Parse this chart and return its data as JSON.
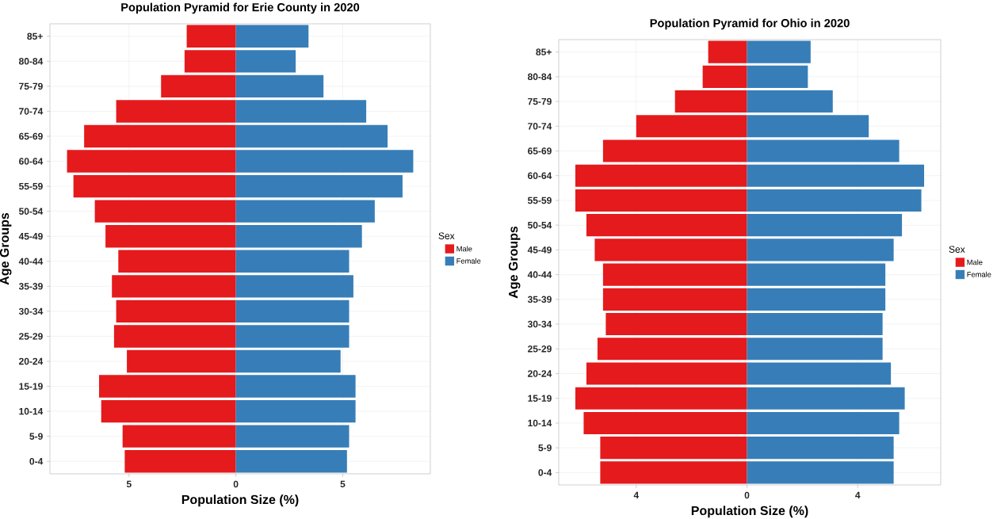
{
  "chart_data": [
    {
      "type": "bar",
      "orientation": "horizontal",
      "stacked": true,
      "title": "Population Pyramid for Erie County in 2020",
      "xlabel": "Population Size (%)",
      "ylabel": "Age Groups",
      "legend_title": "Sex",
      "legend": "right",
      "grid": true,
      "categories": [
        "85+",
        "80-84",
        "75-79",
        "70-74",
        "65-69",
        "60-64",
        "55-59",
        "50-54",
        "45-49",
        "40-44",
        "35-39",
        "30-34",
        "25-29",
        "20-24",
        "15-19",
        "10-14",
        "5-9",
        "0-4"
      ],
      "xlim": [
        -8.7,
        9.1
      ],
      "xticks": [
        {
          "value": -5,
          "label": "5"
        },
        0,
        5
      ],
      "series": [
        {
          "name": "Male",
          "color": "#e41a1c",
          "values": [
            -2.3,
            -2.4,
            -3.5,
            -5.6,
            -7.1,
            -7.9,
            -7.6,
            -6.6,
            -6.1,
            -5.5,
            -5.8,
            -5.6,
            -5.7,
            -5.1,
            -6.4,
            -6.3,
            -5.3,
            -5.2
          ]
        },
        {
          "name": "Female",
          "color": "#377eb8",
          "values": [
            3.4,
            2.8,
            4.1,
            6.1,
            7.1,
            8.3,
            7.8,
            6.5,
            5.9,
            5.3,
            5.5,
            5.3,
            5.3,
            4.9,
            5.6,
            5.6,
            5.3,
            5.2
          ]
        }
      ]
    },
    {
      "type": "bar",
      "orientation": "horizontal",
      "stacked": true,
      "title": "Population Pyramid for Ohio in 2020",
      "xlabel": "Population Size (%)",
      "ylabel": "Age Groups",
      "legend_title": "Sex",
      "legend": "right",
      "grid": true,
      "categories": [
        "85+",
        "80-84",
        "75-79",
        "70-74",
        "65-69",
        "60-64",
        "55-59",
        "50-54",
        "45-49",
        "40-44",
        "35-39",
        "30-34",
        "25-29",
        "20-24",
        "15-19",
        "10-14",
        "5-9",
        "0-4"
      ],
      "xlim": [
        -6.8,
        7.0
      ],
      "xticks": [
        {
          "value": -4,
          "label": "4"
        },
        0,
        4
      ],
      "series": [
        {
          "name": "Male",
          "color": "#e41a1c",
          "values": [
            -1.4,
            -1.6,
            -2.6,
            -4.0,
            -5.2,
            -6.2,
            -6.2,
            -5.8,
            -5.5,
            -5.2,
            -5.2,
            -5.1,
            -5.4,
            -5.8,
            -6.2,
            -5.9,
            -5.3,
            -5.3
          ]
        },
        {
          "name": "Female",
          "color": "#377eb8",
          "values": [
            2.3,
            2.2,
            3.1,
            4.4,
            5.5,
            6.4,
            6.3,
            5.6,
            5.3,
            5.0,
            5.0,
            4.9,
            4.9,
            5.2,
            5.7,
            5.5,
            5.3,
            5.3
          ]
        }
      ]
    }
  ]
}
